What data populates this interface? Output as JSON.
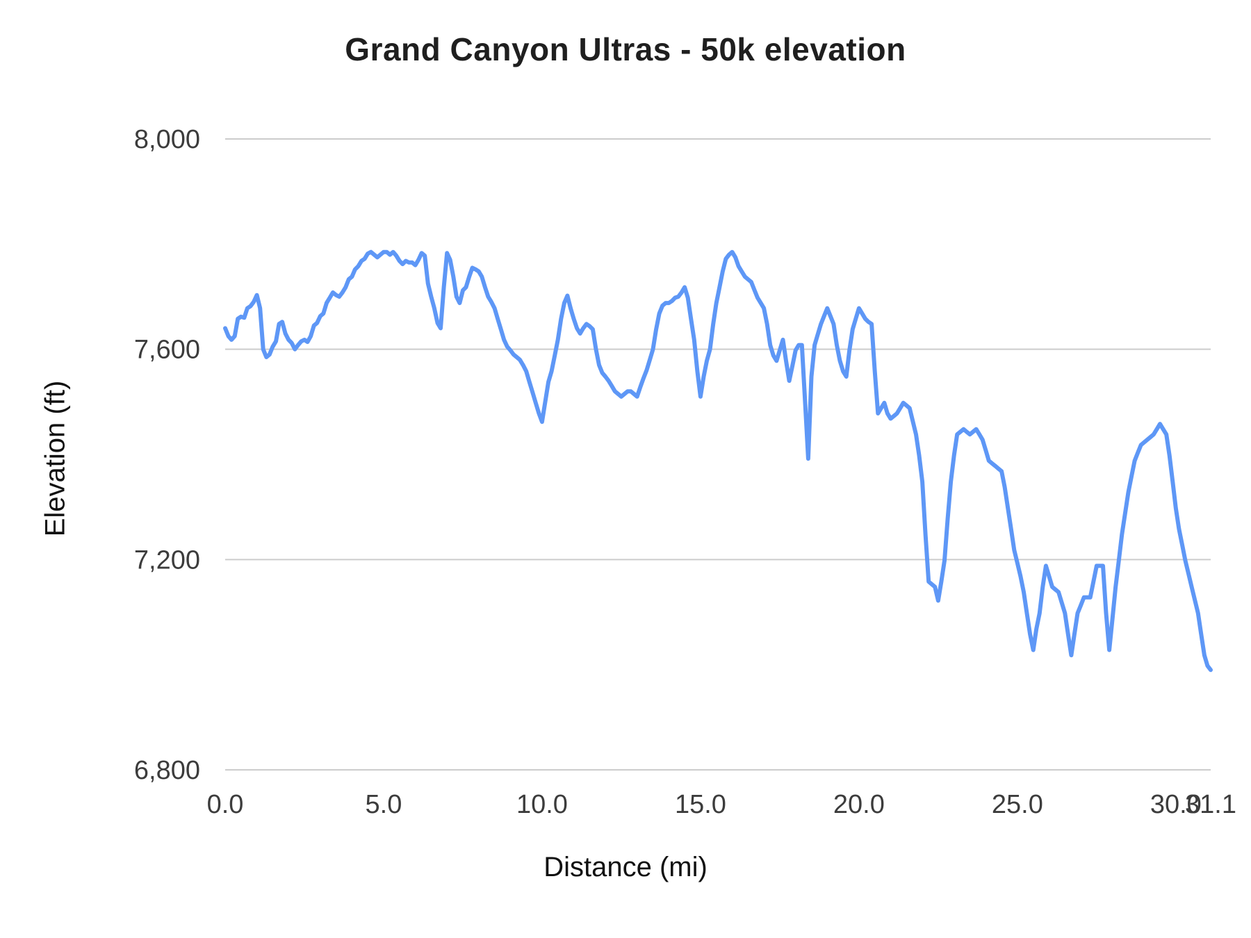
{
  "page": {
    "background": "#ffffff"
  },
  "chart_data": {
    "type": "line",
    "title": "Grand Canyon Ultras - 50k elevation",
    "xlabel": "Distance (mi)",
    "ylabel": "Elevation (ft)",
    "xlim": [
      0,
      31.1
    ],
    "ylim": [
      6800,
      8000
    ],
    "x_ticks": [
      0.0,
      5.0,
      10.0,
      15.0,
      20.0,
      25.0,
      30.0,
      31.1
    ],
    "x_tick_labels": [
      "0.0",
      "5.0",
      "10.0",
      "15.0",
      "20.0",
      "25.0",
      "30.0",
      "31.1"
    ],
    "y_ticks": [
      6800,
      7200,
      7600,
      8000
    ],
    "y_tick_labels": [
      "6,800",
      "7,200",
      "7,600",
      "8,000"
    ],
    "grid": "horizontal-only",
    "legend": "none",
    "colors": {
      "line": "#5e97f6",
      "grid": "#cccccc",
      "ticks": "#3c3c3c",
      "title": "#1f1f1f",
      "axis_titles": "#111111"
    },
    "series": [
      {
        "name": "elevation-profile",
        "points": [
          [
            0.0,
            7640
          ],
          [
            0.1,
            7625
          ],
          [
            0.2,
            7618
          ],
          [
            0.3,
            7625
          ],
          [
            0.4,
            7658
          ],
          [
            0.5,
            7662
          ],
          [
            0.6,
            7660
          ],
          [
            0.7,
            7678
          ],
          [
            0.8,
            7682
          ],
          [
            0.9,
            7690
          ],
          [
            1.0,
            7703
          ],
          [
            1.1,
            7678
          ],
          [
            1.2,
            7600
          ],
          [
            1.3,
            7585
          ],
          [
            1.4,
            7590
          ],
          [
            1.5,
            7605
          ],
          [
            1.6,
            7615
          ],
          [
            1.7,
            7648
          ],
          [
            1.8,
            7652
          ],
          [
            1.9,
            7630
          ],
          [
            2.0,
            7618
          ],
          [
            2.1,
            7612
          ],
          [
            2.2,
            7600
          ],
          [
            2.3,
            7608
          ],
          [
            2.4,
            7615
          ],
          [
            2.5,
            7618
          ],
          [
            2.6,
            7614
          ],
          [
            2.7,
            7625
          ],
          [
            2.8,
            7645
          ],
          [
            2.9,
            7650
          ],
          [
            3.0,
            7663
          ],
          [
            3.1,
            7668
          ],
          [
            3.2,
            7688
          ],
          [
            3.3,
            7698
          ],
          [
            3.4,
            7708
          ],
          [
            3.5,
            7703
          ],
          [
            3.6,
            7700
          ],
          [
            3.7,
            7708
          ],
          [
            3.8,
            7718
          ],
          [
            3.9,
            7733
          ],
          [
            4.0,
            7738
          ],
          [
            4.1,
            7752
          ],
          [
            4.2,
            7758
          ],
          [
            4.3,
            7768
          ],
          [
            4.4,
            7772
          ],
          [
            4.5,
            7782
          ],
          [
            4.6,
            7785
          ],
          [
            4.7,
            7780
          ],
          [
            4.8,
            7775
          ],
          [
            4.9,
            7780
          ],
          [
            5.0,
            7785
          ],
          [
            5.1,
            7785
          ],
          [
            5.2,
            7780
          ],
          [
            5.3,
            7785
          ],
          [
            5.4,
            7778
          ],
          [
            5.5,
            7768
          ],
          [
            5.6,
            7762
          ],
          [
            5.7,
            7768
          ],
          [
            5.8,
            7765
          ],
          [
            5.9,
            7765
          ],
          [
            6.0,
            7760
          ],
          [
            6.1,
            7770
          ],
          [
            6.2,
            7783
          ],
          [
            6.3,
            7778
          ],
          [
            6.4,
            7725
          ],
          [
            6.5,
            7700
          ],
          [
            6.6,
            7678
          ],
          [
            6.7,
            7650
          ],
          [
            6.8,
            7640
          ],
          [
            6.9,
            7718
          ],
          [
            7.0,
            7783
          ],
          [
            7.1,
            7770
          ],
          [
            7.2,
            7738
          ],
          [
            7.3,
            7700
          ],
          [
            7.4,
            7688
          ],
          [
            7.5,
            7712
          ],
          [
            7.6,
            7718
          ],
          [
            7.7,
            7738
          ],
          [
            7.8,
            7755
          ],
          [
            7.9,
            7752
          ],
          [
            8.0,
            7748
          ],
          [
            8.1,
            7738
          ],
          [
            8.2,
            7718
          ],
          [
            8.3,
            7700
          ],
          [
            8.4,
            7690
          ],
          [
            8.5,
            7678
          ],
          [
            8.6,
            7658
          ],
          [
            8.7,
            7638
          ],
          [
            8.8,
            7618
          ],
          [
            8.9,
            7605
          ],
          [
            9.0,
            7598
          ],
          [
            9.1,
            7590
          ],
          [
            9.2,
            7585
          ],
          [
            9.3,
            7580
          ],
          [
            9.4,
            7570
          ],
          [
            9.5,
            7558
          ],
          [
            9.6,
            7538
          ],
          [
            9.7,
            7518
          ],
          [
            9.8,
            7498
          ],
          [
            9.9,
            7478
          ],
          [
            10.0,
            7462
          ],
          [
            10.1,
            7500
          ],
          [
            10.2,
            7538
          ],
          [
            10.3,
            7558
          ],
          [
            10.4,
            7588
          ],
          [
            10.5,
            7618
          ],
          [
            10.6,
            7658
          ],
          [
            10.7,
            7688
          ],
          [
            10.8,
            7702
          ],
          [
            10.9,
            7678
          ],
          [
            11.0,
            7658
          ],
          [
            11.1,
            7640
          ],
          [
            11.2,
            7630
          ],
          [
            11.3,
            7640
          ],
          [
            11.4,
            7648
          ],
          [
            11.5,
            7644
          ],
          [
            11.6,
            7638
          ],
          [
            11.7,
            7600
          ],
          [
            11.8,
            7570
          ],
          [
            11.9,
            7555
          ],
          [
            12.0,
            7548
          ],
          [
            12.1,
            7540
          ],
          [
            12.2,
            7530
          ],
          [
            12.3,
            7520
          ],
          [
            12.4,
            7515
          ],
          [
            12.5,
            7510
          ],
          [
            12.6,
            7515
          ],
          [
            12.7,
            7520
          ],
          [
            12.8,
            7520
          ],
          [
            12.9,
            7515
          ],
          [
            13.0,
            7510
          ],
          [
            13.1,
            7528
          ],
          [
            13.2,
            7545
          ],
          [
            13.3,
            7560
          ],
          [
            13.4,
            7580
          ],
          [
            13.5,
            7600
          ],
          [
            13.6,
            7638
          ],
          [
            13.7,
            7668
          ],
          [
            13.8,
            7683
          ],
          [
            13.9,
            7688
          ],
          [
            14.0,
            7688
          ],
          [
            14.1,
            7692
          ],
          [
            14.2,
            7698
          ],
          [
            14.3,
            7700
          ],
          [
            14.4,
            7708
          ],
          [
            14.5,
            7718
          ],
          [
            14.6,
            7698
          ],
          [
            14.7,
            7658
          ],
          [
            14.8,
            7618
          ],
          [
            14.9,
            7558
          ],
          [
            15.0,
            7510
          ],
          [
            15.1,
            7548
          ],
          [
            15.2,
            7578
          ],
          [
            15.3,
            7600
          ],
          [
            15.4,
            7648
          ],
          [
            15.5,
            7688
          ],
          [
            15.6,
            7718
          ],
          [
            15.7,
            7748
          ],
          [
            15.8,
            7772
          ],
          [
            15.9,
            7780
          ],
          [
            16.0,
            7785
          ],
          [
            16.1,
            7775
          ],
          [
            16.2,
            7758
          ],
          [
            16.3,
            7748
          ],
          [
            16.4,
            7738
          ],
          [
            16.5,
            7733
          ],
          [
            16.6,
            7728
          ],
          [
            16.7,
            7713
          ],
          [
            16.8,
            7698
          ],
          [
            16.9,
            7688
          ],
          [
            17.0,
            7678
          ],
          [
            17.1,
            7648
          ],
          [
            17.2,
            7608
          ],
          [
            17.3,
            7588
          ],
          [
            17.4,
            7578
          ],
          [
            17.5,
            7598
          ],
          [
            17.6,
            7618
          ],
          [
            17.7,
            7578
          ],
          [
            17.8,
            7540
          ],
          [
            17.9,
            7568
          ],
          [
            18.0,
            7598
          ],
          [
            18.1,
            7608
          ],
          [
            18.2,
            7608
          ],
          [
            18.3,
            7500
          ],
          [
            18.4,
            7392
          ],
          [
            18.5,
            7548
          ],
          [
            18.6,
            7608
          ],
          [
            18.7,
            7628
          ],
          [
            18.8,
            7648
          ],
          [
            18.9,
            7663
          ],
          [
            19.0,
            7678
          ],
          [
            19.1,
            7663
          ],
          [
            19.2,
            7648
          ],
          [
            19.3,
            7608
          ],
          [
            19.4,
            7578
          ],
          [
            19.5,
            7558
          ],
          [
            19.6,
            7548
          ],
          [
            19.7,
            7598
          ],
          [
            19.8,
            7638
          ],
          [
            19.9,
            7658
          ],
          [
            20.0,
            7678
          ],
          [
            20.1,
            7668
          ],
          [
            20.2,
            7658
          ],
          [
            20.3,
            7652
          ],
          [
            20.4,
            7648
          ],
          [
            20.5,
            7558
          ],
          [
            20.6,
            7478
          ],
          [
            20.7,
            7488
          ],
          [
            20.8,
            7498
          ],
          [
            20.9,
            7478
          ],
          [
            21.0,
            7468
          ],
          [
            21.1,
            7473
          ],
          [
            21.2,
            7478
          ],
          [
            21.3,
            7488
          ],
          [
            21.4,
            7498
          ],
          [
            21.5,
            7493
          ],
          [
            21.6,
            7488
          ],
          [
            21.7,
            7463
          ],
          [
            21.8,
            7438
          ],
          [
            21.9,
            7398
          ],
          [
            22.0,
            7348
          ],
          [
            22.1,
            7248
          ],
          [
            22.2,
            7158
          ],
          [
            22.3,
            7153
          ],
          [
            22.4,
            7148
          ],
          [
            22.5,
            7122
          ],
          [
            22.6,
            7158
          ],
          [
            22.7,
            7198
          ],
          [
            22.8,
            7278
          ],
          [
            22.9,
            7348
          ],
          [
            23.0,
            7398
          ],
          [
            23.1,
            7438
          ],
          [
            23.2,
            7443
          ],
          [
            23.3,
            7448
          ],
          [
            23.4,
            7443
          ],
          [
            23.5,
            7438
          ],
          [
            23.6,
            7443
          ],
          [
            23.7,
            7448
          ],
          [
            23.8,
            7438
          ],
          [
            23.9,
            7428
          ],
          [
            24.0,
            7408
          ],
          [
            24.1,
            7388
          ],
          [
            24.2,
            7383
          ],
          [
            24.3,
            7378
          ],
          [
            24.4,
            7373
          ],
          [
            24.5,
            7368
          ],
          [
            24.6,
            7338
          ],
          [
            24.7,
            7298
          ],
          [
            24.8,
            7258
          ],
          [
            24.9,
            7218
          ],
          [
            25.0,
            7193
          ],
          [
            25.1,
            7168
          ],
          [
            25.2,
            7138
          ],
          [
            25.3,
            7098
          ],
          [
            25.4,
            7058
          ],
          [
            25.5,
            7028
          ],
          [
            25.6,
            7068
          ],
          [
            25.7,
            7098
          ],
          [
            25.8,
            7148
          ],
          [
            25.9,
            7188
          ],
          [
            26.0,
            7168
          ],
          [
            26.1,
            7148
          ],
          [
            26.2,
            7143
          ],
          [
            26.3,
            7138
          ],
          [
            26.4,
            7118
          ],
          [
            26.5,
            7098
          ],
          [
            26.6,
            7058
          ],
          [
            26.7,
            7018
          ],
          [
            26.8,
            7058
          ],
          [
            26.9,
            7098
          ],
          [
            27.0,
            7113
          ],
          [
            27.1,
            7128
          ],
          [
            27.2,
            7128
          ],
          [
            27.3,
            7128
          ],
          [
            27.4,
            7158
          ],
          [
            27.5,
            7188
          ],
          [
            27.6,
            7188
          ],
          [
            27.7,
            7188
          ],
          [
            27.8,
            7098
          ],
          [
            27.9,
            7028
          ],
          [
            28.0,
            7088
          ],
          [
            28.1,
            7148
          ],
          [
            28.2,
            7198
          ],
          [
            28.3,
            7248
          ],
          [
            28.4,
            7288
          ],
          [
            28.5,
            7328
          ],
          [
            28.6,
            7358
          ],
          [
            28.7,
            7388
          ],
          [
            28.8,
            7403
          ],
          [
            28.9,
            7418
          ],
          [
            29.0,
            7423
          ],
          [
            29.1,
            7428
          ],
          [
            29.2,
            7433
          ],
          [
            29.3,
            7438
          ],
          [
            29.4,
            7448
          ],
          [
            29.5,
            7458
          ],
          [
            29.6,
            7448
          ],
          [
            29.7,
            7438
          ],
          [
            29.8,
            7398
          ],
          [
            29.9,
            7348
          ],
          [
            30.0,
            7298
          ],
          [
            30.1,
            7258
          ],
          [
            30.2,
            7228
          ],
          [
            30.3,
            7198
          ],
          [
            30.4,
            7173
          ],
          [
            30.5,
            7148
          ],
          [
            30.6,
            7123
          ],
          [
            30.7,
            7098
          ],
          [
            30.8,
            7058
          ],
          [
            30.9,
            7018
          ],
          [
            31.0,
            6998
          ],
          [
            31.1,
            6990
          ]
        ]
      }
    ]
  }
}
